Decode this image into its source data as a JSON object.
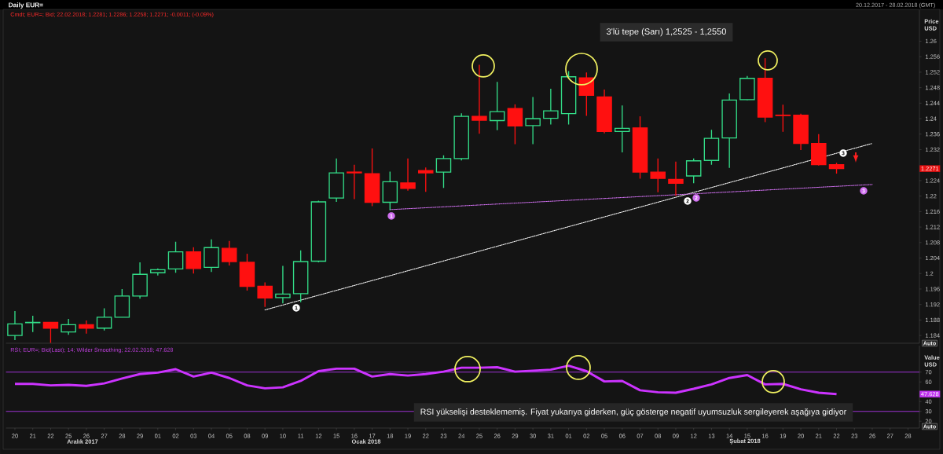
{
  "chart_data": [
    {
      "type": "candlestick",
      "title": "Daily EUR=",
      "subtitle": "20.12.2017 - 28.02.2018 (GMT)",
      "ylabel": "Price USD",
      "categories": [
        "20",
        "21",
        "22",
        "25",
        "26",
        "27",
        "28",
        "29",
        "01",
        "02",
        "03",
        "04",
        "05",
        "08",
        "09",
        "10",
        "11",
        "12",
        "15",
        "16",
        "17",
        "18",
        "19",
        "22",
        "23",
        "24",
        "25",
        "26",
        "29",
        "30",
        "31",
        "01",
        "02",
        "05",
        "06",
        "07",
        "08",
        "09",
        "12",
        "13",
        "14",
        "15",
        "16",
        "19",
        "20",
        "21",
        "22",
        "23",
        "26",
        "27",
        "28"
      ],
      "ohlc": [
        [
          1.184,
          1.1903,
          1.1828,
          1.187
        ],
        [
          1.1873,
          1.1891,
          1.1849,
          1.1874
        ],
        [
          1.1874,
          1.1874,
          1.1821,
          1.1859
        ],
        [
          1.1849,
          1.1883,
          1.1842,
          1.1868
        ],
        [
          1.1868,
          1.1879,
          1.1845,
          1.1859
        ],
        [
          1.1859,
          1.191,
          1.1853,
          1.1887
        ],
        [
          1.1887,
          1.196,
          1.1887,
          1.1942
        ],
        [
          1.1942,
          1.2029,
          1.1935,
          1.1998
        ],
        [
          1.2002,
          1.2013,
          1.1995,
          1.201
        ],
        [
          1.2012,
          1.2082,
          1.2002,
          1.2056
        ],
        [
          1.2056,
          1.2068,
          1.2,
          1.2013
        ],
        [
          1.2016,
          1.2088,
          1.2004,
          1.2067
        ],
        [
          1.2065,
          1.2084,
          1.2021,
          1.2031
        ],
        [
          1.2029,
          1.2051,
          1.1956,
          1.1967
        ],
        [
          1.1967,
          1.1977,
          1.1914,
          1.1937
        ],
        [
          1.1938,
          1.202,
          1.1923,
          1.1947
        ],
        [
          1.1948,
          1.206,
          1.1926,
          1.2031
        ],
        [
          1.2032,
          1.2188,
          1.2029,
          1.2185
        ],
        [
          1.2195,
          1.2297,
          1.2185,
          1.226
        ],
        [
          1.2262,
          1.2281,
          1.2192,
          1.226
        ],
        [
          1.2258,
          1.2323,
          1.2174,
          1.2184
        ],
        [
          1.2184,
          1.2263,
          1.2164,
          1.2237
        ],
        [
          1.2234,
          1.2297,
          1.2214,
          1.222
        ],
        [
          1.2266,
          1.2274,
          1.2211,
          1.226
        ],
        [
          1.2262,
          1.2305,
          1.2221,
          1.2297
        ],
        [
          1.2297,
          1.2414,
          1.2292,
          1.2406
        ],
        [
          1.2406,
          1.2539,
          1.2361,
          1.2396
        ],
        [
          1.2395,
          1.2495,
          1.237,
          1.2418
        ],
        [
          1.2426,
          1.2437,
          1.2334,
          1.2381
        ],
        [
          1.2382,
          1.2456,
          1.2334,
          1.24
        ],
        [
          1.2401,
          1.2477,
          1.2385,
          1.242
        ],
        [
          1.2413,
          1.2523,
          1.2385,
          1.2508
        ],
        [
          1.2505,
          1.2519,
          1.2407,
          1.246
        ],
        [
          1.2456,
          1.2475,
          1.2362,
          1.2367
        ],
        [
          1.2367,
          1.2434,
          1.2313,
          1.2375
        ],
        [
          1.2376,
          1.2406,
          1.2245,
          1.2262
        ],
        [
          1.2262,
          1.2297,
          1.221,
          1.2246
        ],
        [
          1.2243,
          1.2289,
          1.2201,
          1.2233
        ],
        [
          1.2252,
          1.2297,
          1.2233,
          1.2291
        ],
        [
          1.2292,
          1.2371,
          1.2281,
          1.2349
        ],
        [
          1.235,
          1.2465,
          1.2273,
          1.2448
        ],
        [
          1.2449,
          1.251,
          1.2447,
          1.2504
        ],
        [
          1.2504,
          1.2556,
          1.2391,
          1.2404
        ],
        [
          1.2409,
          1.2436,
          1.2366,
          1.2408
        ],
        [
          1.2409,
          1.2413,
          1.2319,
          1.2336
        ],
        [
          1.2336,
          1.236,
          1.2279,
          1.2281
        ],
        [
          1.2281,
          1.2286,
          1.2258,
          1.2271
        ],
        null,
        null,
        null,
        null
      ],
      "series": [
        {
          "type": "line",
          "color": "#ffffff",
          "line_style": "dotted",
          "values": [
            null,
            null,
            null,
            null,
            null,
            null,
            null,
            null,
            null,
            null,
            null,
            null,
            null,
            null,
            1.1906,
            null,
            null,
            null,
            null,
            null,
            null,
            null,
            null,
            null,
            null,
            null,
            null,
            null,
            null,
            null,
            null,
            null,
            null,
            null,
            null,
            null,
            null,
            null,
            null,
            null,
            null,
            null,
            null,
            null,
            null,
            null,
            null,
            null,
            1.2336,
            null,
            null
          ]
        },
        {
          "type": "line",
          "color": "#d070f0",
          "line_style": "dotted",
          "values": [
            null,
            null,
            null,
            null,
            null,
            null,
            null,
            null,
            null,
            null,
            null,
            null,
            null,
            null,
            null,
            null,
            null,
            null,
            null,
            null,
            null,
            1.2165,
            null,
            null,
            null,
            null,
            null,
            null,
            null,
            null,
            null,
            null,
            null,
            null,
            null,
            null,
            null,
            null,
            null,
            null,
            null,
            null,
            null,
            null,
            null,
            null,
            null,
            null,
            1.223,
            null,
            null
          ]
        }
      ],
      "ylim": [
        1.182,
        1.268
      ],
      "yticks": [
        1.184,
        1.188,
        1.192,
        1.196,
        1.2,
        1.204,
        1.208,
        1.212,
        1.216,
        1.22,
        1.224,
        1.232,
        1.236,
        1.24,
        1.244,
        1.248,
        1.252,
        1.256,
        1.26
      ],
      "tick_labels": "y",
      "annotations": [
        "Cmdt; EUR=; Bid; 22.02.2018; 1.2281; 1.2286; 1.2258; 1.2271; -0.0011; (-0.09%)",
        "3'lü tepe (Sarı) 1,2525 - 1,2550",
        "1",
        "1",
        "2",
        "2",
        "3",
        "3",
        {
          "text": "1.2271",
          "y": 1.2271
        },
        "Auto"
      ]
    },
    {
      "type": "line",
      "ylabel": "Value USD",
      "categories": [
        "20",
        "21",
        "22",
        "25",
        "26",
        "27",
        "28",
        "29",
        "01",
        "02",
        "03",
        "04",
        "05",
        "08",
        "09",
        "10",
        "11",
        "12",
        "15",
        "16",
        "17",
        "18",
        "19",
        "22",
        "23",
        "24",
        "25",
        "26",
        "29",
        "30",
        "31",
        "01",
        "02",
        "05",
        "06",
        "07",
        "08",
        "09",
        "12",
        "13",
        "14",
        "15",
        "16",
        "19",
        "20",
        "21",
        "22",
        "23",
        "26",
        "27",
        "28"
      ],
      "series": [
        {
          "color": "#cc33ff",
          "values": [
            58,
            58,
            56.5,
            57,
            56,
            58.5,
            63.5,
            68,
            69.5,
            73,
            65.5,
            69.5,
            64,
            56.5,
            53.5,
            54.5,
            61,
            71,
            73.5,
            73.5,
            65.5,
            68,
            66.5,
            68,
            70.5,
            74.5,
            74.5,
            75,
            70.5,
            71.5,
            72.5,
            76.5,
            71,
            60.5,
            61,
            51.5,
            49.5,
            49,
            53,
            57.5,
            64,
            67,
            57.5,
            58,
            52.5,
            49,
            47.628,
            null,
            null,
            null,
            null
          ]
        }
      ],
      "ylim": [
        13,
        97
      ],
      "yticks": [
        20,
        30,
        40,
        60,
        70
      ],
      "ref_lines": [
        {
          "axis": "y",
          "value": 70,
          "color": "#9b30d0"
        },
        {
          "axis": "y",
          "value": 30,
          "color": "#9b30d0"
        }
      ],
      "annotations": [
        "RSI; EUR=; Bid(Last); 14; Wilder Smoothing; 22.02.2018; 47.628",
        "RSI yükselişi desteklememiş. Fiyat yukarıya giderken, güç gösterge negatif uyumsuzluk sergileyerek aşağıya gidiyor",
        "Aralık 2017",
        "Ocak 2018",
        "Şubat 2018",
        {
          "text": "47.628",
          "y": 47.628
        },
        "Auto"
      ]
    }
  ]
}
